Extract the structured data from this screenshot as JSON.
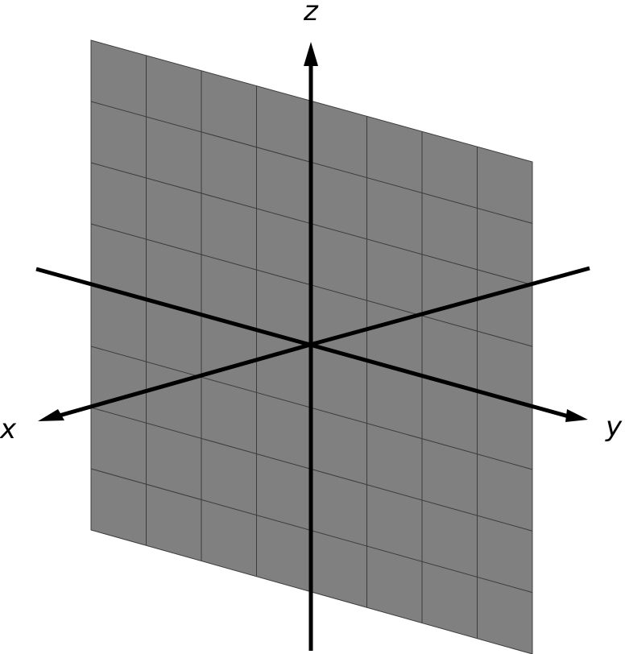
{
  "diagram": {
    "axes": {
      "x_label": "x",
      "y_label": "y",
      "z_label": "z"
    },
    "plane": {
      "grid_divisions_horizontal": 8,
      "grid_divisions_vertical": 8
    },
    "colors": {
      "plane_fill": "#808080",
      "plane_grid": "#3c3c3c",
      "axis": "#000000",
      "background": "#ffffff"
    }
  }
}
